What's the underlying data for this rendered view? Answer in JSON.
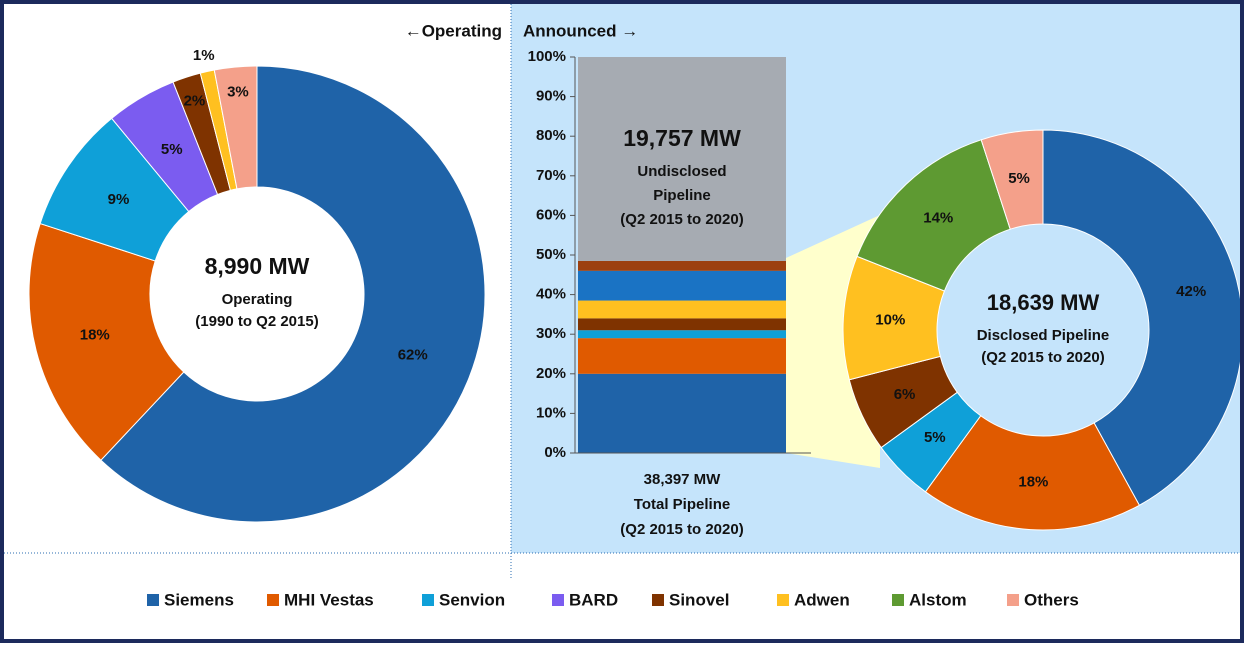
{
  "chart_data": [
    {
      "type": "donut",
      "title": "8,990 MW",
      "subtitle": [
        "Operating",
        "(1990 to Q2 2015)"
      ],
      "categories": [
        "Siemens",
        "MHI Vestas",
        "Senvion",
        "BARD",
        "Sinovel",
        "Adwen",
        "Others"
      ],
      "values": [
        62,
        18,
        9,
        5,
        2,
        1,
        3
      ],
      "value_labels": [
        "62%",
        "18%",
        "9%",
        "5%",
        "2%",
        "1%",
        "3%"
      ],
      "colors": [
        "#1f63a8",
        "#e05a00",
        "#0fa0d8",
        "#7b5cf0",
        "#7f3300",
        "#ffc020",
        "#f4a08a"
      ]
    },
    {
      "type": "stacked_bar",
      "title": "38,397 MW",
      "subtitle": [
        "Total Pipeline",
        "(Q2 2015 to 2020)"
      ],
      "segments": [
        {
          "value": 20,
          "color": "#1f63a8"
        },
        {
          "value": 9,
          "color": "#e05a00"
        },
        {
          "value": 2,
          "color": "#0fa0d8"
        },
        {
          "value": 3,
          "color": "#7f3300"
        },
        {
          "value": 4.5,
          "color": "#ffc020"
        },
        {
          "value": 7.5,
          "color": "#1a73c4"
        },
        {
          "value": 2.5,
          "color": "#9c4010"
        },
        {
          "value": 51.5,
          "color": "#a6abb2"
        }
      ],
      "annotation": [
        "19,757 MW",
        "Undisclosed",
        "Pipeline",
        "(Q2 2015 to 2020)"
      ],
      "ylim": [
        0,
        100
      ],
      "yticks": [
        {
          "value": 0,
          "label": "0%"
        },
        {
          "value": 10,
          "label": "10%"
        },
        {
          "value": 20,
          "label": "20%"
        },
        {
          "value": 30,
          "label": "30%"
        },
        {
          "value": 40,
          "label": "40%"
        },
        {
          "value": 50,
          "label": "50%"
        },
        {
          "value": 60,
          "label": "60%"
        },
        {
          "value": 70,
          "label": "70%"
        },
        {
          "value": 80,
          "label": "80%"
        },
        {
          "value": 90,
          "label": "90%"
        },
        {
          "value": 100,
          "label": "100%"
        }
      ]
    },
    {
      "type": "donut",
      "title": "18,639 MW",
      "subtitle": [
        "Disclosed Pipeline",
        "(Q2 2015 to 2020)"
      ],
      "categories": [
        "Siemens",
        "MHI Vestas",
        "Senvion",
        "Sinovel",
        "Adwen",
        "Alstom",
        "Others"
      ],
      "values": [
        42,
        18,
        5,
        6,
        10,
        14,
        5
      ],
      "value_labels": [
        "42%",
        "18%",
        "5%",
        "6%",
        "10%",
        "14%",
        "5%"
      ],
      "colors": [
        "#1f63a8",
        "#e05a00",
        "#0fa0d8",
        "#7f3300",
        "#ffc020",
        "#5e9a32",
        "#f4a08a"
      ]
    }
  ],
  "labels": {
    "operating": "←Operating",
    "announced": "Announced →"
  },
  "legend": [
    {
      "name": "Siemens",
      "color": "#1f63a8"
    },
    {
      "name": "MHI Vestas",
      "color": "#e05a00"
    },
    {
      "name": "Senvion",
      "color": "#0fa0d8"
    },
    {
      "name": "BARD",
      "color": "#7b5cf0"
    },
    {
      "name": "Sinovel",
      "color": "#7f3300"
    },
    {
      "name": "Adwen",
      "color": "#ffc020"
    },
    {
      "name": "Alstom",
      "color": "#5e9a32"
    },
    {
      "name": "Others",
      "color": "#f4a08a"
    }
  ]
}
